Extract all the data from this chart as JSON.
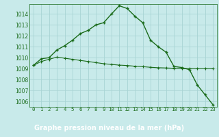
{
  "title": "Graphe pression niveau de la mer (hPa)",
  "x_labels": [
    0,
    1,
    2,
    3,
    4,
    5,
    6,
    7,
    8,
    9,
    10,
    11,
    12,
    13,
    14,
    15,
    16,
    17,
    18,
    19,
    20,
    21,
    22,
    23
  ],
  "line1": [
    1009.3,
    1009.9,
    1010.0,
    1010.7,
    1011.1,
    1011.6,
    1012.2,
    1012.5,
    1013.0,
    1013.2,
    1014.0,
    1014.75,
    1014.5,
    1013.8,
    1013.2,
    1011.6,
    1011.0,
    1010.5,
    1009.2,
    1009.1,
    1008.9,
    1007.5,
    1006.6,
    1005.7
  ],
  "line2": [
    1009.3,
    1009.65,
    1009.85,
    1010.05,
    1009.95,
    1009.85,
    1009.75,
    1009.65,
    1009.55,
    1009.45,
    1009.38,
    1009.32,
    1009.28,
    1009.22,
    1009.18,
    1009.12,
    1009.08,
    1009.06,
    1009.03,
    1009.01,
    1009.0,
    1009.0,
    1009.0,
    1009.0
  ],
  "ylim": [
    1005.5,
    1014.9
  ],
  "yticks": [
    1006,
    1007,
    1008,
    1009,
    1010,
    1011,
    1012,
    1013,
    1014
  ],
  "line_color": "#1a6b1a",
  "bg_color": "#c8eaea",
  "grid_color": "#a8d4d4",
  "title_color": "white",
  "title_bg": "#3a8c3a",
  "marker": "+"
}
